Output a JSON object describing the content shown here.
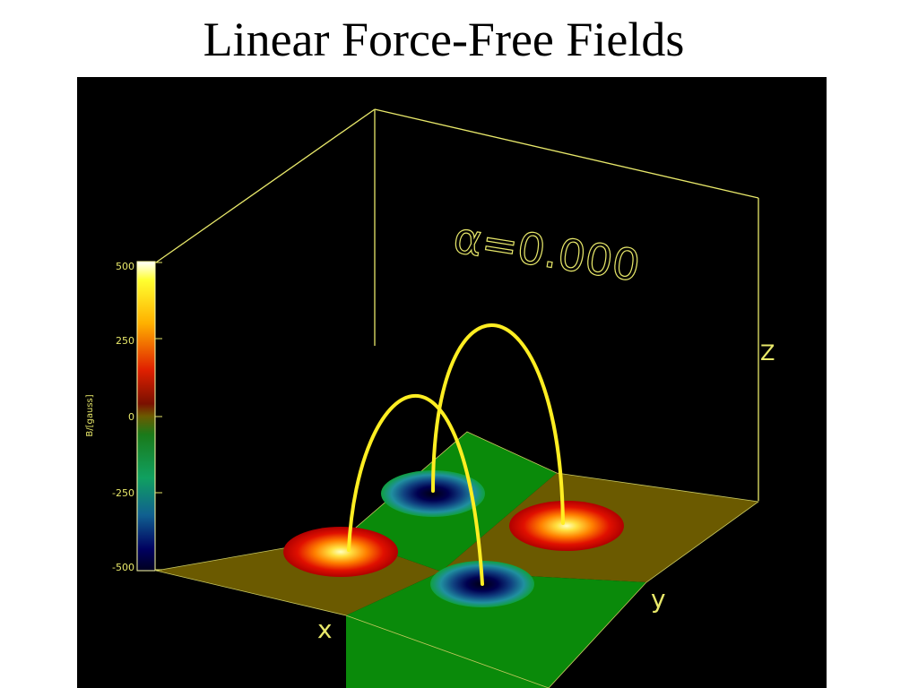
{
  "slide": {
    "title": "Linear Force-Free Fields"
  },
  "plot": {
    "annotation": "α=0.000",
    "axes": {
      "x": "x",
      "y": "y",
      "z": "Z"
    },
    "colorbar": {
      "label": "B/[gauss]",
      "ticks": [
        "500",
        "250",
        "0",
        "-250",
        "-500"
      ],
      "min": -500,
      "max": 500
    },
    "colors": {
      "background": "#000000",
      "frame": "#e8e86a",
      "positive_region": "#6b5a00",
      "negative_region": "#0a8a0a",
      "field_lines": "#ffee22"
    },
    "sources": [
      {
        "polarity": "positive",
        "location": "left plate"
      },
      {
        "polarity": "positive",
        "location": "right plate"
      },
      {
        "polarity": "negative",
        "location": "back plate"
      },
      {
        "polarity": "negative",
        "location": "front plate"
      }
    ],
    "field_lines_count": 2
  }
}
